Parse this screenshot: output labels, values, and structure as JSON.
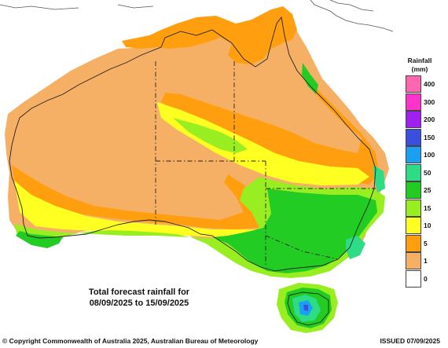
{
  "map": {
    "title_line1": "Total forecast rainfall for",
    "title_line2": "08/09/2025 to 15/09/2025",
    "copyright": "© Copyright Commonwealth of Australia 2025, Australian Bureau of Meteorology",
    "issued": "ISSUED 07/09/2025"
  },
  "legend": {
    "title_line1": "Rainfall",
    "title_line2": "(mm)",
    "bins": [
      {
        "label": "400",
        "color": "#ff66b0"
      },
      {
        "label": "300",
        "color": "#ff33cc"
      },
      {
        "label": "200",
        "color": "#a020f0"
      },
      {
        "label": "150",
        "color": "#3a4fe0"
      },
      {
        "label": "100",
        "color": "#1aa0f0"
      },
      {
        "label": "50",
        "color": "#2fdc86"
      },
      {
        "label": "25",
        "color": "#22cc22"
      },
      {
        "label": "15",
        "color": "#99ee22"
      },
      {
        "label": "10",
        "color": "#ffff22"
      },
      {
        "label": "5",
        "color": "#ff9f10"
      },
      {
        "label": "1",
        "color": "#f5b066"
      },
      {
        "label": "0",
        "color": "#ffffff"
      }
    ]
  },
  "colors": {
    "zero": "#ffffff",
    "one": "#f5b066",
    "five": "#ff9f10",
    "ten": "#ffff22",
    "fifteen": "#99ee22",
    "twentyfive": "#22cc22",
    "fifty": "#2fdc86",
    "hundred": "#1aa0f0",
    "onefifty": "#3a4fe0"
  }
}
